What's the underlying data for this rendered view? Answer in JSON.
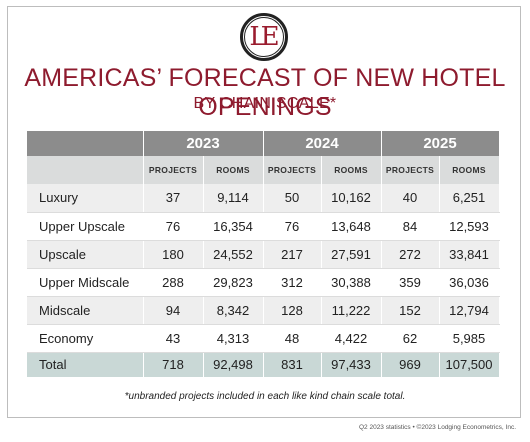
{
  "logo": {
    "letters": "LE"
  },
  "title": "AMERICAS’ FORECAST OF NEW HOTEL OPENINGS",
  "subtitle": "BY CHAIN SCALE*",
  "table": {
    "years": [
      "2023",
      "2024",
      "2025"
    ],
    "subheaders": [
      "PROJECTS",
      "ROOMS",
      "PROJECTS",
      "ROOMS",
      "PROJECTS",
      "ROOMS"
    ],
    "rows": [
      {
        "label": "Luxury",
        "values": [
          "37",
          "9,114",
          "50",
          "10,162",
          "40",
          "6,251"
        ]
      },
      {
        "label": "Upper Upscale",
        "values": [
          "76",
          "16,354",
          "76",
          "13,648",
          "84",
          "12,593"
        ]
      },
      {
        "label": "Upscale",
        "values": [
          "180",
          "24,552",
          "217",
          "27,591",
          "272",
          "33,841"
        ]
      },
      {
        "label": "Upper Midscale",
        "values": [
          "288",
          "29,823",
          "312",
          "30,388",
          "359",
          "36,036"
        ]
      },
      {
        "label": "Midscale",
        "values": [
          "94",
          "8,342",
          "128",
          "11,222",
          "152",
          "12,794"
        ]
      },
      {
        "label": "Economy",
        "values": [
          "43",
          "4,313",
          "48",
          "4,422",
          "62",
          "5,985"
        ]
      }
    ],
    "total": {
      "label": "Total",
      "values": [
        "718",
        "92,498",
        "831",
        "97,433",
        "969",
        "107,500"
      ]
    }
  },
  "footnote": "*unbranded projects included in each like kind chain scale total.",
  "credit": "Q2 2023 statistics • ©2023 Lodging Econometrics, Inc.",
  "colors": {
    "title": "#8e1b2e",
    "header": "#8c8c8c",
    "subheader": "#dadcdc",
    "total": "#c9d8d6"
  }
}
